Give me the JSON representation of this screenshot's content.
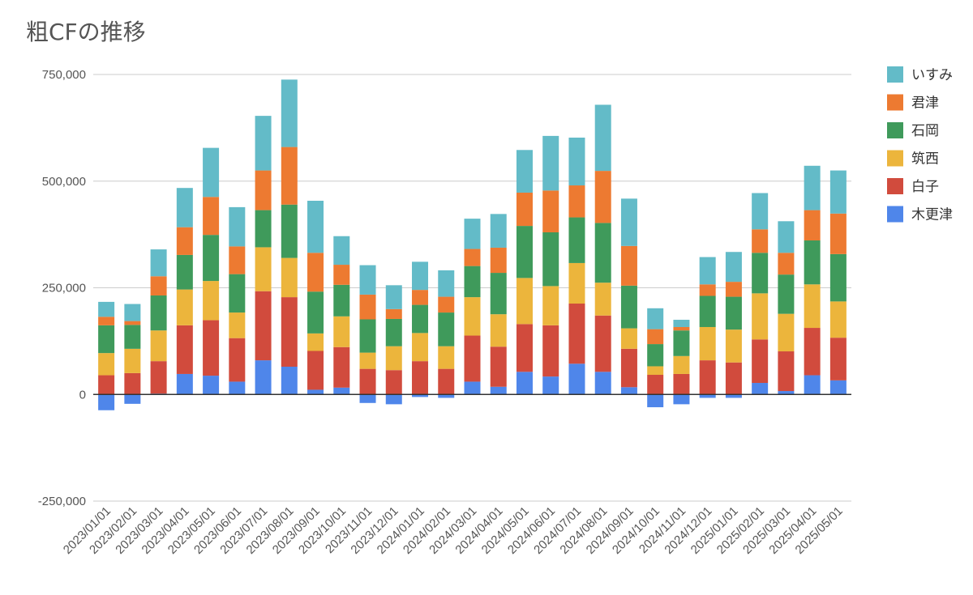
{
  "chart_data": {
    "type": "bar",
    "stacked": true,
    "title": "粗CFの推移",
    "xlabel": "",
    "ylabel": "",
    "ylim": [
      -250000,
      750000
    ],
    "y_ticks": [
      "750,000",
      "500,000",
      "250,000",
      "0",
      "-250,000"
    ],
    "y_tick_values": [
      750000,
      500000,
      250000,
      0,
      -250000
    ],
    "grid": true,
    "legend_position": "right",
    "categories": [
      "2023/01/01",
      "2023/02/01",
      "2023/03/01",
      "2023/04/01",
      "2023/05/01",
      "2023/06/01",
      "2023/07/01",
      "2023/08/01",
      "2023/09/01",
      "2023/10/01",
      "2023/11/01",
      "2023/12/01",
      "2024/01/01",
      "2024/02/01",
      "2024/03/01",
      "2024/04/01",
      "2024/05/01",
      "2024/06/01",
      "2024/07/01",
      "2024/08/01",
      "2024/09/01",
      "2024/10/01",
      "2024/11/01",
      "2024/12/01",
      "2025/01/01",
      "2025/02/01",
      "2025/03/01",
      "2025/04/01",
      "2025/05/01"
    ],
    "series": [
      {
        "name": "木更津",
        "color": "#4f86ea",
        "values": [
          -37000,
          -22000,
          2000,
          48000,
          44000,
          30000,
          80000,
          65000,
          11000,
          16000,
          -20000,
          -23000,
          -6000,
          -8000,
          30000,
          18000,
          53000,
          42000,
          72000,
          53000,
          17000,
          -30000,
          -23000,
          -8000,
          -8000,
          27000,
          8000,
          45000,
          33000
        ]
      },
      {
        "name": "白子",
        "color": "#d14b3d",
        "values": [
          45000,
          50000,
          76000,
          114000,
          130000,
          102000,
          162000,
          163000,
          91000,
          95000,
          60000,
          57000,
          78000,
          60000,
          108000,
          94000,
          112000,
          120000,
          141000,
          132000,
          90000,
          46000,
          48000,
          80000,
          75000,
          102000,
          93000,
          111000,
          100000
        ]
      },
      {
        "name": "筑西",
        "color": "#ecb53c",
        "values": [
          52000,
          57000,
          72000,
          84000,
          92000,
          60000,
          103000,
          92000,
          41000,
          72000,
          38000,
          56000,
          66000,
          53000,
          90000,
          76000,
          108000,
          92000,
          95000,
          77000,
          48000,
          20000,
          42000,
          78000,
          77000,
          108000,
          88000,
          102000,
          85000
        ]
      },
      {
        "name": "石岡",
        "color": "#3f9a5b",
        "values": [
          65000,
          56000,
          82000,
          81000,
          108000,
          90000,
          87000,
          125000,
          98000,
          74000,
          78000,
          64000,
          66000,
          79000,
          73000,
          97000,
          122000,
          126000,
          107000,
          140000,
          100000,
          52000,
          60000,
          73000,
          77000,
          95000,
          92000,
          103000,
          111000
        ]
      },
      {
        "name": "君津",
        "color": "#ed7a31",
        "values": [
          20000,
          9000,
          45000,
          65000,
          89000,
          65000,
          93000,
          135000,
          91000,
          47000,
          58000,
          23000,
          35000,
          37000,
          40000,
          59000,
          78000,
          98000,
          75000,
          122000,
          93000,
          35000,
          8000,
          27000,
          35000,
          55000,
          51000,
          71000,
          95000
        ]
      },
      {
        "name": "いすみ",
        "color": "#63bbc8",
        "values": [
          35000,
          40000,
          63000,
          92000,
          115000,
          92000,
          128000,
          158000,
          122000,
          67000,
          69000,
          56000,
          66000,
          62000,
          71000,
          79000,
          100000,
          128000,
          112000,
          155000,
          111000,
          49000,
          17000,
          64000,
          70000,
          85000,
          74000,
          104000,
          101000
        ]
      }
    ]
  }
}
